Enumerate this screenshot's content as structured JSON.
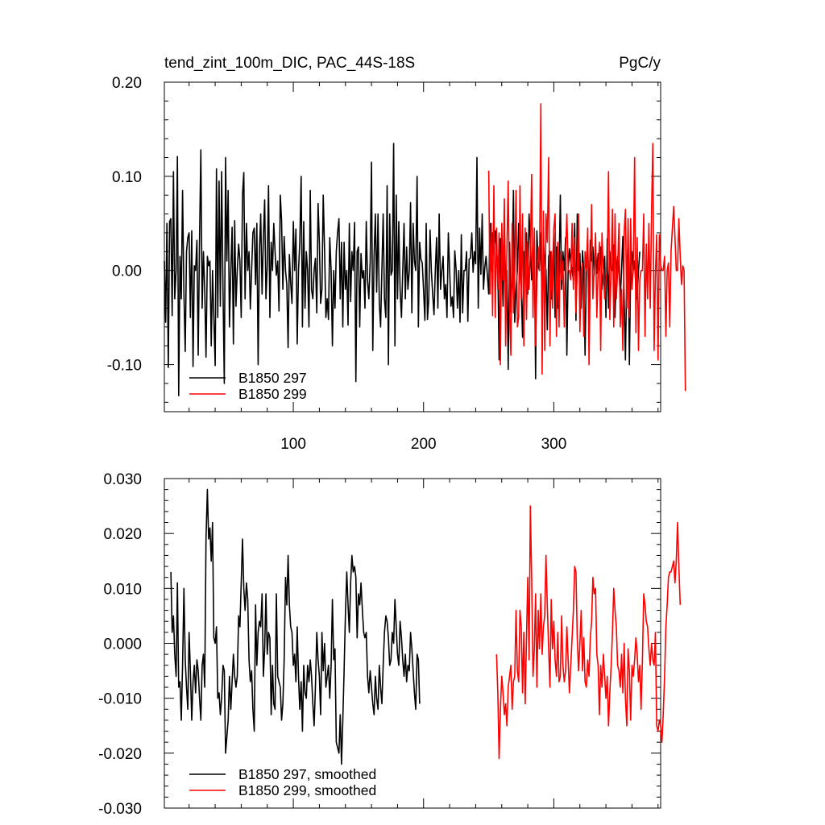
{
  "figure": {
    "title": "tend_zint_100m_DIC, PAC_44S-18S",
    "units": "PgC/y"
  },
  "chart_data": [
    {
      "type": "line",
      "name": "raw",
      "xlim": [
        1,
        382
      ],
      "ylim": [
        -0.15,
        0.2
      ],
      "x_ticks": [
        100,
        200,
        300
      ],
      "x_tick_labels": [
        "100",
        "200",
        "300"
      ],
      "y_ticks": [
        -0.1,
        0.0,
        0.1,
        0.2
      ],
      "y_tick_labels": [
        "-0.10",
        "0.00",
        "0.10",
        "0.20"
      ],
      "legend_position": "bottom-left",
      "series": [
        {
          "name": "B1850 297",
          "color": "#000000",
          "x_start": 1,
          "values": [
            0.01,
            -0.055,
            0.05,
            -0.103,
            0.052,
            0.055,
            -0.048,
            0.105,
            -0.03,
            0.0,
            0.121,
            -0.133,
            0.015,
            -0.03,
            0.085,
            -0.025,
            -0.086,
            0.02,
            0.035,
            0.04,
            -0.05,
            0.042,
            -0.102,
            0.005,
            0.0,
            0.032,
            -0.09,
            0.035,
            0.128,
            -0.04,
            0.02,
            -0.02,
            -0.092,
            0.015,
            0.005,
            0.01,
            -0.08,
            0.0,
            -0.05,
            -0.101,
            0.108,
            -0.05,
            0.095,
            -0.038,
            0.105,
            -0.02,
            -0.12,
            0.12,
            0.01,
            0.085,
            -0.06,
            0.0,
            0.046,
            -0.078,
            0.053,
            -0.038,
            0.0,
            0.028,
            0.01,
            -0.05,
            0.08,
            0.104,
            -0.03,
            0.05,
            0.0,
            0.02,
            -0.041,
            0.0,
            0.04,
            0.045,
            -0.015,
            0.05,
            -0.1,
            0.02,
            0.06,
            -0.025,
            0.035,
            0.075,
            -0.03,
            0.005,
            0.09,
            -0.05,
            0.03,
            0.0,
            0.05,
            0.02,
            -0.005,
            0.01,
            -0.043,
            0.08,
            0.053,
            -0.02,
            0.036,
            0.0,
            -0.015,
            -0.082,
            0.017,
            -0.013,
            -0.035,
            0.052,
            0.0,
            0.044,
            -0.078,
            0.0,
            0.03,
            0.1,
            -0.06,
            0.052,
            -0.04,
            0.02,
            0.0,
            -0.06,
            0.085,
            -0.02,
            -0.03,
            0.0,
            0.013,
            -0.045,
            0.071,
            0.03,
            -0.035,
            -0.02,
            0.08,
            0.02,
            -0.05,
            -0.03,
            -0.052,
            0.035,
            0.0,
            -0.08,
            0.0,
            -0.04,
            0.02,
            0.04,
            0.055,
            -0.03,
            0.03,
            -0.06,
            0.03,
            -0.02,
            0.0,
            -0.058,
            0.05,
            -0.033,
            0.02,
            0.0,
            0.051,
            -0.118,
            0.02,
            0.025,
            -0.06,
            0.018,
            -0.008,
            0.0,
            -0.04,
            0.052,
            -0.011,
            -0.03,
            0.01,
            0.115,
            -0.085,
            0.015,
            0.06,
            -0.023,
            0.06,
            -0.035,
            -0.06,
            0.0,
            0.06,
            -0.03,
            -0.05,
            0.09,
            -0.1,
            0.06,
            -0.005,
            0.0,
            0.135,
            -0.08,
            0.08,
            -0.03,
            0.052,
            -0.02,
            -0.05,
            0.0,
            0.05,
            -0.03,
            0.025,
            -0.02,
            0.0,
            0.072,
            -0.045,
            0.05,
            0.01,
            0.0,
            0.1,
            -0.06,
            0.03,
            0.012,
            0.008,
            -0.02,
            -0.053,
            0.05,
            -0.052,
            -0.03,
            0.043,
            0.0,
            -0.026,
            -0.047,
            0.0,
            0.035,
            -0.04,
            0.06,
            -0.02,
            0.0,
            0.015,
            -0.03,
            -0.015,
            -0.05,
            0.04,
            0.0,
            -0.038,
            -0.028,
            -0.05,
            0.021,
            0.0,
            -0.04,
            0.0,
            -0.055,
            0.038,
            -0.045,
            0.0,
            0.0,
            0.02,
            -0.054,
            0.012,
            0.013,
            0.04,
            -0.002,
            0.02,
            0.007,
            0.12,
            -0.04,
            0.045,
            -0.004,
            0.06,
            -0.02,
            0.003,
            0.015,
            -0.006,
            -0.025,
            0.05,
            0.0,
            0.04,
            0.018,
            0.042,
            0.02,
            0.006,
            -0.095,
            0.034,
            0.019,
            -0.038,
            0.045,
            -0.012,
            0.0,
            -0.105,
            0.03,
            -0.045,
            0.0,
            0.085,
            -0.055,
            -0.02,
            0.0,
            0.05,
            0.0,
            -0.02,
            -0.071,
            0.02,
            0.0,
            0.04,
            -0.025,
            0.06,
            0.03,
            -0.01,
            0.0,
            0.035,
            -0.115,
            0.042,
            0.005,
            0.0,
            0.04,
            -0.05,
            0.03,
            0.01,
            0.0,
            -0.063,
            0.015,
            0.02,
            -0.03,
            0.0,
            0.04,
            -0.05,
            0.025,
            -0.04,
            0.0,
            0.08,
            -0.02,
            0.02,
            0.0,
            0.035,
            -0.09,
            0.0,
            0.023,
            0.01,
            0.0,
            -0.01,
            0.05,
            -0.053,
            0.06,
            0.0,
            0.018,
            -0.04,
            0.021,
            0.0,
            -0.09,
            0.0,
            0.03,
            -0.04,
            0.032,
            0.01,
            0.025,
            -0.005,
            0.027,
            -0.003,
            0.018,
            0.0,
            0.025,
            -0.02,
            0.0,
            0.015,
            -0.05,
            0.034,
            -0.04,
            0.02,
            0.0,
            0.0,
            0.027,
            -0.05,
            0.0,
            0.015,
            0.0,
            -0.03,
            0.0,
            0.036,
            -0.03,
            -0.095,
            0.0,
            0.03,
            -0.1,
            0.0,
            0.02,
            0.0,
            0.01,
            -0.02,
            -0.03,
            0.0,
            0.02
          ]
        },
        {
          "name": "B1850 299",
          "color": "#ff0000",
          "x_start": 250,
          "values": [
            0.106,
            -0.025,
            0.05,
            -0.048,
            0.09,
            -0.05,
            0.045,
            -0.02,
            0.04,
            -0.1,
            0.05,
            -0.01,
            0.076,
            -0.08,
            0.024,
            0.095,
            -0.04,
            -0.09,
            0.05,
            -0.045,
            0.0,
            0.085,
            -0.06,
            -0.05,
            0.09,
            -0.03,
            0.06,
            -0.08,
            0.045,
            -0.052,
            0.03,
            -0.02,
            0.02,
            0.102,
            -0.05,
            0.045,
            -0.08,
            -0.012,
            0.025,
            0.0,
            0.177,
            -0.11,
            0.063,
            -0.085,
            0.06,
            0.03,
            0.12,
            -0.08,
            0.02,
            -0.04,
            0.045,
            0.06,
            -0.07,
            0.03,
            -0.06,
            0.02,
            -0.01,
            0.01,
            -0.06,
            0.02,
            0.06,
            0.0,
            0.0,
            -0.01,
            0.05,
            -0.02,
            0.035,
            -0.045,
            0.0,
            0.06,
            -0.065,
            0.0,
            0.008,
            -0.07,
            0.02,
            0.0,
            0.045,
            -0.1,
            0.0,
            0.07,
            -0.03,
            0.0,
            0.04,
            -0.05,
            0.0,
            0.03,
            -0.085,
            0.04,
            0.0,
            -0.03,
            -0.01,
            0.0,
            0.105,
            -0.052,
            0.0,
            0.065,
            -0.06,
            0.06,
            -0.03,
            0.0,
            0.05,
            -0.06,
            -0.02,
            -0.085,
            0.04,
            0.065,
            -0.04,
            0.055,
            -0.05,
            0.055,
            -0.02,
            0.0,
            0.12,
            -0.066,
            0.035,
            -0.085,
            -0.01,
            0.0,
            0.0,
            0.06,
            -0.07,
            0.028,
            -0.03,
            0.05,
            -0.04,
            0.06,
            0.135,
            -0.085,
            -0.005,
            0.038,
            -0.095,
            0.038,
            0.005,
            0.0,
            0.0,
            0.015,
            -0.07,
            0.0,
            0.008,
            -0.06,
            0.02,
            0.045,
            0.068,
            0.035,
            0.0,
            0.0,
            0.055,
            0.015,
            -0.015,
            0.005,
            0.0,
            -0.128
          ]
        }
      ]
    },
    {
      "type": "line",
      "name": "smoothed",
      "xlim": [
        1,
        382
      ],
      "ylim": [
        -0.03,
        0.03
      ],
      "x_ticks": [
        100,
        200,
        300
      ],
      "y_ticks": [
        -0.03,
        -0.02,
        -0.01,
        0.0,
        0.01,
        0.02,
        0.03
      ],
      "y_tick_labels": [
        "-0.030",
        "-0.020",
        "-0.010",
        "0.000",
        "0.010",
        "0.020",
        "0.030"
      ],
      "legend_position": "bottom-left",
      "series": [
        {
          "name": "B1850 297, smoothed",
          "color": "#000000",
          "x_start": 6,
          "values": [
            0.013,
            0.002,
            0.005,
            -0.002,
            -0.006,
            0.011,
            -0.008,
            -0.007,
            -0.014,
            -0.004,
            0.01,
            -0.003,
            -0.008,
            -0.012,
            0.002,
            -0.005,
            -0.014,
            -0.007,
            -0.004,
            -0.009,
            -0.003,
            -0.005,
            -0.01,
            -0.014,
            -0.004,
            -0.002,
            -0.008,
            0.019,
            0.028,
            0.019,
            0.021,
            0.015,
            0.022,
            0.001,
            0.0,
            0.003,
            -0.01,
            -0.009,
            -0.013,
            -0.01,
            -0.004,
            -0.005,
            -0.02,
            -0.017,
            -0.014,
            -0.006,
            -0.012,
            -0.007,
            -0.002,
            -0.006,
            -0.008,
            -0.006,
            0.005,
            0.003,
            0.011,
            0.019,
            0.01,
            0.006,
            0.011,
            0.008,
            -0.003,
            -0.007,
            -0.005,
            -0.012,
            -0.016,
            0.007,
            -0.004,
            0.002,
            0.004,
            0.003,
            0.009,
            -0.006,
            -0.001,
            0.009,
            -0.002,
            0.002,
            0.001,
            -0.013,
            -0.004,
            -0.011,
            -0.012,
            0.009,
            -0.006,
            -0.007,
            -0.008,
            -0.014,
            -0.011,
            -0.003,
            0.012,
            0.007,
            0.016,
            0.007,
            0.003,
            0.002,
            -0.004,
            -0.002,
            -0.007,
            0.003,
            -0.006,
            -0.012,
            -0.007,
            -0.016,
            -0.004,
            -0.009,
            -0.01,
            -0.004,
            -0.007,
            -0.003,
            -0.006,
            -0.011,
            -0.015,
            -0.008,
            0.002,
            -0.003,
            -0.006,
            -0.013,
            0.002,
            -0.005,
            0.0,
            -0.008,
            -0.006,
            -0.004,
            -0.01,
            -0.004,
            0.008,
            -0.003,
            -0.001,
            -0.018,
            -0.019,
            -0.02,
            -0.013,
            -0.022,
            -0.014,
            -0.005,
            0.005,
            0.013,
            0.007,
            0.002,
            0.011,
            0.016,
            0.013,
            0.014,
            0.012,
            0.001,
            0.009,
            0.007,
            0.011,
            0.006,
            0.002,
            0.001,
            0.002,
            -0.006,
            -0.009,
            -0.005,
            -0.008,
            -0.011,
            -0.013,
            -0.006,
            -0.01,
            -0.012,
            -0.004,
            -0.008,
            -0.011,
            -0.004,
            0.002,
            0.005,
            0.004,
            0.001,
            -0.004,
            -0.003,
            0.002,
            0.0,
            0.008,
            0.003,
            -0.002,
            -0.004,
            0.004,
            0.001,
            -0.003,
            -0.006,
            -0.002,
            -0.007,
            -0.004,
            -0.005,
            0.002,
            -0.001,
            -0.005,
            -0.009,
            -0.012,
            -0.002,
            -0.003,
            -0.011
          ]
        },
        {
          "name": "B1850 299, smoothed",
          "color": "#ff0000",
          "x_start": 256,
          "values": [
            -0.002,
            -0.009,
            -0.021,
            -0.012,
            -0.006,
            -0.009,
            -0.013,
            -0.011,
            -0.015,
            -0.008,
            -0.006,
            -0.004,
            -0.012,
            -0.007,
            -0.006,
            0.006,
            -0.005,
            -0.007,
            0.006,
            0.003,
            -0.009,
            0.002,
            -0.011,
            0.001,
            0.012,
            -0.003,
            0.025,
            0.012,
            -0.006,
            -0.001,
            0.009,
            -0.008,
            0.006,
            -0.001,
            0.009,
            -0.002,
            0.003,
            0.005,
            0.016,
            0.007,
            -0.001,
            -0.008,
            0.008,
            -0.001,
            0.004,
            -0.003,
            -0.006,
            0.002,
            -0.007,
            -0.006,
            0.005,
            -0.004,
            -0.007,
            -0.005,
            0.003,
            -0.003,
            -0.009,
            -0.004,
            0.001,
            0.006,
            0.014,
            0.013,
            0.001,
            -0.005,
            0.0,
            0.006,
            -0.005,
            0.001,
            -0.007,
            -0.008,
            -0.003,
            -0.006,
            0.001,
            0.004,
            0.012,
            0.009,
            0.01,
            -0.002,
            -0.004,
            -0.013,
            -0.004,
            -0.008,
            -0.002,
            -0.006,
            -0.01,
            -0.006,
            -0.015,
            -0.009,
            -0.004,
            0.002,
            0.01,
            0.006,
            0.003,
            -0.004,
            -0.005,
            -0.008,
            -0.002,
            -0.009,
            0.0,
            -0.01,
            -0.015,
            -0.001,
            -0.005,
            -0.014,
            -0.004,
            -0.006,
            -0.003,
            0.001,
            -0.002,
            -0.007,
            -0.004,
            -0.012,
            -0.003,
            0.009,
            0.007,
            0.004,
            0.003,
            -0.001,
            -0.004,
            0.0,
            -0.003,
            -0.004,
            0.002,
            -0.015,
            -0.016,
            -0.014,
            -0.015,
            -0.018,
            -0.013,
            -0.006,
            0.003,
            0.007,
            0.012,
            0.013,
            0.013,
            0.014,
            0.015,
            0.011,
            0.015,
            0.022,
            0.014,
            0.007
          ]
        }
      ]
    }
  ]
}
